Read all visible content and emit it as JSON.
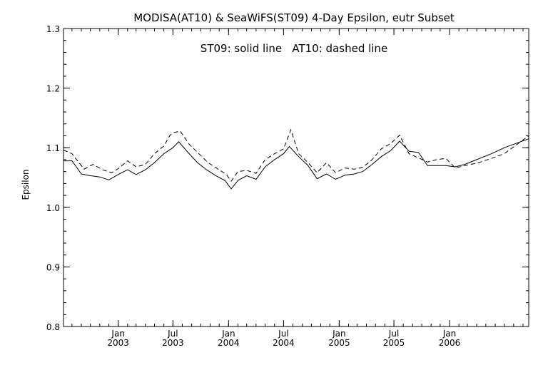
{
  "chart_data": {
    "type": "line",
    "title": "MODISA(AT10) & SeaWiFS(ST09) 4-Day Epsilon, eutr Subset",
    "annotation": "ST09: solid line   AT10: dashed line",
    "ylabel": "Epsilon",
    "xlabel": "",
    "ylim": [
      0.8,
      1.3
    ],
    "xlim": [
      "2002-07-04",
      "2006-09-20"
    ],
    "yticks": [
      0.8,
      0.9,
      1.0,
      1.1,
      1.2,
      1.3
    ],
    "ytick_labels": [
      "0.8",
      "0.9",
      "1.0",
      "1.1",
      "1.2",
      "1.3"
    ],
    "xticks": [
      {
        "date": "2003-01-01",
        "line1": "Jan",
        "line2": "2003"
      },
      {
        "date": "2003-07-01",
        "line1": "Jul",
        "line2": "2003"
      },
      {
        "date": "2004-01-01",
        "line1": "Jan",
        "line2": "2004"
      },
      {
        "date": "2004-07-01",
        "line1": "Jul",
        "line2": "2004"
      },
      {
        "date": "2005-01-01",
        "line1": "Jan",
        "line2": "2005"
      },
      {
        "date": "2005-07-01",
        "line1": "Jul",
        "line2": "2005"
      },
      {
        "date": "2006-01-01",
        "line1": "Jan",
        "line2": "2006"
      }
    ],
    "grid": false,
    "series": [
      {
        "style": "solid",
        "color": "#000000",
        "points": [
          [
            "2002-07-04",
            1.078
          ],
          [
            "2002-08-01",
            1.078
          ],
          [
            "2002-09-01",
            1.056
          ],
          [
            "2002-10-01",
            1.053
          ],
          [
            "2002-11-01",
            1.051
          ],
          [
            "2002-12-01",
            1.046
          ],
          [
            "2003-01-01",
            1.055
          ],
          [
            "2003-02-01",
            1.063
          ],
          [
            "2003-03-01",
            1.055
          ],
          [
            "2003-04-01",
            1.063
          ],
          [
            "2003-05-01",
            1.075
          ],
          [
            "2003-06-01",
            1.09
          ],
          [
            "2003-07-01",
            1.1
          ],
          [
            "2003-07-20",
            1.11
          ],
          [
            "2003-08-20",
            1.092
          ],
          [
            "2003-09-20",
            1.075
          ],
          [
            "2003-10-20",
            1.063
          ],
          [
            "2003-11-20",
            1.053
          ],
          [
            "2003-12-20",
            1.045
          ],
          [
            "2004-01-10",
            1.031
          ],
          [
            "2004-02-01",
            1.045
          ],
          [
            "2004-03-01",
            1.053
          ],
          [
            "2004-04-01",
            1.047
          ],
          [
            "2004-05-01",
            1.068
          ],
          [
            "2004-06-01",
            1.08
          ],
          [
            "2004-07-01",
            1.09
          ],
          [
            "2004-07-20",
            1.102
          ],
          [
            "2004-08-20",
            1.085
          ],
          [
            "2004-09-20",
            1.07
          ],
          [
            "2004-10-20",
            1.048
          ],
          [
            "2004-11-20",
            1.056
          ],
          [
            "2004-12-20",
            1.047
          ],
          [
            "2005-01-20",
            1.054
          ],
          [
            "2005-02-20",
            1.056
          ],
          [
            "2005-03-20",
            1.06
          ],
          [
            "2005-04-20",
            1.072
          ],
          [
            "2005-05-20",
            1.085
          ],
          [
            "2005-06-20",
            1.095
          ],
          [
            "2005-07-20",
            1.111
          ],
          [
            "2005-08-20",
            1.094
          ],
          [
            "2005-09-20",
            1.092
          ],
          [
            "2005-10-20",
            1.07
          ],
          [
            "2005-11-20",
            1.07
          ],
          [
            "2005-12-20",
            1.07
          ],
          [
            "2006-01-20",
            1.068
          ],
          [
            "2006-02-20",
            1.072
          ],
          [
            "2006-04-01",
            1.08
          ],
          [
            "2006-05-20",
            1.09
          ],
          [
            "2006-07-01",
            1.1
          ],
          [
            "2006-09-20",
            1.115
          ]
        ]
      },
      {
        "style": "dashed",
        "color": "#000000",
        "points": [
          [
            "2002-07-04",
            1.096
          ],
          [
            "2002-08-01",
            1.09
          ],
          [
            "2002-09-10",
            1.064
          ],
          [
            "2002-10-10",
            1.072
          ],
          [
            "2002-11-10",
            1.063
          ],
          [
            "2002-12-10",
            1.058
          ],
          [
            "2003-01-01",
            1.065
          ],
          [
            "2003-02-01",
            1.078
          ],
          [
            "2003-03-01",
            1.068
          ],
          [
            "2003-04-01",
            1.072
          ],
          [
            "2003-05-01",
            1.09
          ],
          [
            "2003-06-01",
            1.103
          ],
          [
            "2003-06-20",
            1.12
          ],
          [
            "2003-07-01",
            1.125
          ],
          [
            "2003-07-25",
            1.128
          ],
          [
            "2003-08-25",
            1.105
          ],
          [
            "2003-09-25",
            1.09
          ],
          [
            "2003-10-25",
            1.075
          ],
          [
            "2003-11-25",
            1.065
          ],
          [
            "2003-12-25",
            1.055
          ],
          [
            "2004-01-10",
            1.044
          ],
          [
            "2004-02-01",
            1.06
          ],
          [
            "2004-03-01",
            1.062
          ],
          [
            "2004-04-01",
            1.057
          ],
          [
            "2004-05-01",
            1.08
          ],
          [
            "2004-06-01",
            1.09
          ],
          [
            "2004-07-01",
            1.098
          ],
          [
            "2004-07-25",
            1.13
          ],
          [
            "2004-08-20",
            1.09
          ],
          [
            "2004-09-20",
            1.075
          ],
          [
            "2004-10-20",
            1.058
          ],
          [
            "2004-11-20",
            1.075
          ],
          [
            "2004-12-20",
            1.058
          ],
          [
            "2005-01-20",
            1.066
          ],
          [
            "2005-02-20",
            1.064
          ],
          [
            "2005-03-20",
            1.067
          ],
          [
            "2005-04-20",
            1.08
          ],
          [
            "2005-05-20",
            1.098
          ],
          [
            "2005-06-20",
            1.107
          ],
          [
            "2005-07-20",
            1.121
          ],
          [
            "2005-08-20",
            1.09
          ],
          [
            "2005-09-20",
            1.083
          ],
          [
            "2005-10-20",
            1.076
          ],
          [
            "2005-11-20",
            1.08
          ],
          [
            "2005-12-20",
            1.082
          ],
          [
            "2006-01-20",
            1.066
          ],
          [
            "2006-02-20",
            1.07
          ],
          [
            "2006-04-01",
            1.074
          ],
          [
            "2006-05-20",
            1.082
          ],
          [
            "2006-07-01",
            1.09
          ],
          [
            "2006-09-20",
            1.12
          ]
        ]
      }
    ]
  }
}
